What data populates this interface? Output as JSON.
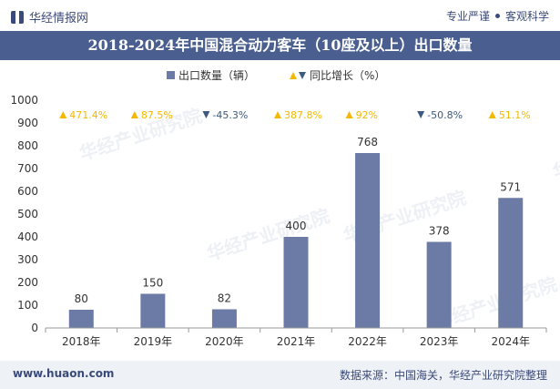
{
  "header": {
    "logo_text": "华经情报网",
    "tag1": "专业严谨",
    "tag2": "客观科学"
  },
  "footer": {
    "website": "www.huaon.com",
    "source": "数据来源：中国海关，华经产业研究院整理"
  },
  "watermark": "华经产业研究院",
  "colors": {
    "bar": "#6b7ba6",
    "up": "#f5b800",
    "down": "#3d5a80",
    "title_bg": "#4a5f8f"
  },
  "chart_data": {
    "type": "bar",
    "title": "2018-2024年中国混合动力客车（10座及以上）出口数量",
    "categories": [
      "2018年",
      "2019年",
      "2020年",
      "2021年",
      "2022年",
      "2023年",
      "2024年"
    ],
    "series": [
      {
        "name": "出口数量（辆）",
        "values": [
          80,
          150,
          82,
          400,
          768,
          378,
          571
        ],
        "labels": [
          "80",
          "150",
          "82",
          "400",
          "768",
          "378",
          "571"
        ]
      }
    ],
    "growth": {
      "name": "同比增长（%）",
      "values": [
        471.4,
        87.5,
        -45.3,
        387.8,
        92,
        -50.8,
        51.1
      ],
      "labels": [
        "471.4%",
        "87.5%",
        "-45.3%",
        "387.8%",
        "92%",
        "-50.8%",
        "51.1%"
      ]
    },
    "legend": [
      "出口数量（辆）",
      "同比增长（%）"
    ],
    "ylim": [
      0,
      1000
    ],
    "yticks": [
      0,
      100,
      200,
      300,
      400,
      500,
      600,
      700,
      800,
      900,
      1000
    ],
    "ytick_labels": [
      "0",
      "100",
      "200",
      "300",
      "400",
      "500",
      "600",
      "700",
      "800",
      "900",
      "1000"
    ],
    "grid": false
  }
}
